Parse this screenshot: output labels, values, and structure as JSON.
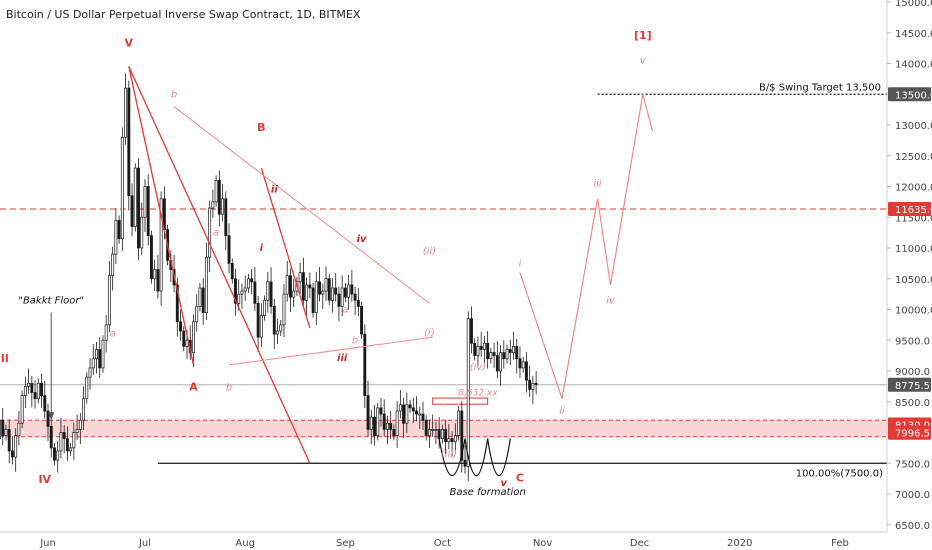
{
  "title": "Bitcoin / US Dollar Perpetual Inverse Swap Contract, 1D, BITMEX",
  "colors": {
    "candle": "#1a1a1a",
    "wave": "#e53935",
    "wave_light": "#f08a8a",
    "zone_fill": "#f7c6c6",
    "price_badge_dark": "#555555",
    "price_badge_red": "#e53935"
  },
  "chart_data": {
    "type": "candlestick",
    "ylim": [
      6600,
      15200
    ],
    "y_ticks": [
      "15000.0",
      "14500.0",
      "14000.0",
      "13500.0",
      "13000.0",
      "12500.0",
      "12000.0",
      "11500.0",
      "11000.0",
      "10500.0",
      "10000.0",
      "9500.0",
      "9000.0",
      "8500.0",
      "8000.0",
      "7500.0",
      "7000.0",
      "6500.0"
    ],
    "x_ticks": [
      {
        "label": "Jun",
        "date": "2019-06-01"
      },
      {
        "label": "Jul",
        "date": "2019-07-01"
      },
      {
        "label": "Aug",
        "date": "2019-08-01"
      },
      {
        "label": "Sep",
        "date": "2019-09-01"
      },
      {
        "label": "Oct",
        "date": "2019-10-01"
      },
      {
        "label": "Nov",
        "date": "2019-11-01"
      },
      {
        "label": "Dec",
        "date": "2019-12-01"
      },
      {
        "label": "2020",
        "date": "2020-01-01"
      },
      {
        "label": "Feb",
        "date": "2020-02-01"
      }
    ],
    "start_date": "2019-05-14",
    "closes": [
      7800,
      8100,
      7900,
      8200,
      7950,
      8050,
      7700,
      7600,
      7950,
      8150,
      8600,
      8750,
      8800,
      8650,
      8550,
      8800,
      8600,
      8350,
      8100,
      7750,
      7550,
      7700,
      8000,
      7900,
      7700,
      7750,
      8000,
      8050,
      8200,
      8550,
      8900,
      9050,
      9200,
      9350,
      9050,
      9500,
      9750,
      10550,
      10900,
      11450,
      11150,
      12800,
      13600,
      11850,
      11350,
      12300,
      11000,
      11500,
      12000,
      11200,
      10500,
      10650,
      10300,
      11800,
      11300,
      10800,
      10650,
      10400,
      9800,
      9650,
      9400,
      9500,
      9300,
      9800,
      10050,
      10350,
      9950,
      10850,
      11650,
      11750,
      12100,
      11550,
      11800,
      11200,
      10750,
      10500,
      10100,
      10250,
      10300,
      10350,
      10500,
      10450,
      10100,
      9550,
      9900,
      10150,
      10450,
      10050,
      9600,
      9650,
      9750,
      10250,
      10550,
      10200,
      10300,
      10450,
      10600,
      10150,
      10400,
      10350,
      9950,
      10450,
      10250,
      10300,
      10500,
      10150,
      10350,
      10250,
      10050,
      10350,
      10200,
      10400,
      10250,
      10150,
      10050,
      9600,
      8600,
      8050,
      8250,
      7950,
      8400,
      8300,
      8050,
      8150,
      8050,
      7950,
      8350,
      8450,
      8150,
      8450,
      8400,
      8350,
      8300,
      8300,
      8200,
      7950,
      8050,
      8050,
      8050,
      7900,
      8050,
      7850,
      7900,
      7850,
      7950,
      8350,
      7550,
      7450,
      9850,
      9450,
      9250,
      9400,
      9350,
      9450,
      9200,
      9300,
      9250,
      9000,
      9300,
      9200,
      9350,
      9300,
      9400,
      9200,
      9050,
      9150,
      8850,
      8700,
      8800,
      8780
    ],
    "price_labels": [
      {
        "value": 13500,
        "text": "13500.0",
        "style": "dark"
      },
      {
        "value": 11635,
        "text": "11635.0",
        "style": "red"
      },
      {
        "value": 8775.5,
        "text": "8775.5",
        "style": "dark"
      },
      {
        "value": 8130,
        "text": "8130.0",
        "style": "red"
      },
      {
        "value": 7996.5,
        "text": "7996.5",
        "style": "red"
      }
    ],
    "resistance_level": 11635,
    "support_zone": [
      7930,
      8200
    ],
    "swing_target": {
      "value": 13500,
      "label": "B/$ Swing Target 13,500"
    },
    "fib_level": {
      "value": 7500,
      "label": "100.00%(7500.0)"
    },
    "annotations": [
      {
        "text": "V",
        "date": "2019-06-26",
        "price": 14280,
        "style": "wave-red"
      },
      {
        "text": "b",
        "date": "2019-07-10",
        "price": 13450,
        "style": "italic-red"
      },
      {
        "text": "B",
        "date": "2019-08-06",
        "price": 12900,
        "style": "wave-red"
      },
      {
        "text": "ii",
        "date": "2019-08-10",
        "price": 11900,
        "style": "italic-darkred"
      },
      {
        "text": "a",
        "date": "2019-07-23",
        "price": 11200,
        "style": "italic-red"
      },
      {
        "text": "i",
        "date": "2019-08-06",
        "price": 10950,
        "style": "italic-darkred"
      },
      {
        "text": "iv",
        "date": "2019-09-06",
        "price": 11100,
        "style": "italic-darkred"
      },
      {
        "text": "(ii)",
        "date": "2019-09-27",
        "price": 10900,
        "style": "italic-red"
      },
      {
        "text": "a",
        "date": "2019-09-01",
        "price": 9950,
        "style": "italic-red"
      },
      {
        "text": "b",
        "date": "2019-09-04",
        "price": 9450,
        "style": "italic-red"
      },
      {
        "text": "iii",
        "date": "2019-08-31",
        "price": 9160,
        "style": "italic-darkred"
      },
      {
        "text": "(i)",
        "date": "2019-09-27",
        "price": 9580,
        "style": "italic-red"
      },
      {
        "text": "a",
        "date": "2019-06-21",
        "price": 9560,
        "style": "italic-red"
      },
      {
        "text": "A",
        "date": "2019-07-16",
        "price": 8680,
        "style": "wave-red"
      },
      {
        "text": "b",
        "date": "2019-07-27",
        "price": 8680,
        "style": "italic-red"
      },
      {
        "text": "III",
        "date": "2019-05-18",
        "price": 9150,
        "style": "wave-red"
      },
      {
        "text": "IV",
        "date": "2019-05-31",
        "price": 7180,
        "style": "wave-red"
      },
      {
        "text": "\"Bakkt Floor\"",
        "date": "2019-06-02",
        "price": 10100,
        "style": "italic-black"
      },
      {
        "text": "(iv)",
        "date": "2019-10-12",
        "price": 9020,
        "style": "italic-red"
      },
      {
        "text": "8,532.xx",
        "date": "2019-10-12",
        "price": 8600,
        "style": "italic-red-small"
      },
      {
        "text": "(iii)",
        "date": "2019-10-03",
        "price": 7600,
        "style": "italic-red"
      },
      {
        "text": "Base formation",
        "date": "2019-10-15",
        "price": 6980,
        "style": "italic-black"
      },
      {
        "text": "v",
        "date": "2019-10-20",
        "price": 7130,
        "style": "italic-darkred"
      },
      {
        "text": "C",
        "date": "2019-10-25",
        "price": 7200,
        "style": "wave-red"
      },
      {
        "text": "i",
        "date": "2019-10-25",
        "price": 10700,
        "style": "italic-red"
      },
      {
        "text": "ii",
        "date": "2019-11-07",
        "price": 8300,
        "style": "italic-red"
      },
      {
        "text": "iii",
        "date": "2019-11-18",
        "price": 12000,
        "style": "italic-red"
      },
      {
        "text": "iv",
        "date": "2019-11-22",
        "price": 10100,
        "style": "italic-red"
      },
      {
        "text": "v",
        "date": "2019-12-02",
        "price": 14000,
        "style": "italic-red"
      },
      {
        "text": "[1]",
        "date": "2019-12-02",
        "price": 14400,
        "style": "wave-red"
      }
    ],
    "wave_lines": [
      {
        "points": [
          [
            "2019-06-26",
            13950
          ],
          [
            "2019-07-16",
            9100
          ]
        ],
        "style": "solid"
      },
      {
        "points": [
          [
            "2019-06-26",
            13950
          ],
          [
            "2019-08-21",
            7500
          ]
        ],
        "style": "solid"
      },
      {
        "points": [
          [
            "2019-08-06",
            12300
          ],
          [
            "2019-08-21",
            9700
          ]
        ],
        "style": "solid"
      },
      {
        "points": [
          [
            "2019-07-10",
            13300
          ],
          [
            "2019-09-27",
            10100
          ]
        ],
        "style": "light"
      },
      {
        "points": [
          [
            "2019-07-27",
            9100
          ],
          [
            "2019-09-28",
            9550
          ]
        ],
        "style": "light"
      },
      {
        "points": [
          [
            "2019-10-25",
            10600
          ],
          [
            "2019-11-07",
            8550
          ],
          [
            "2019-11-18",
            11800
          ],
          [
            "2019-11-22",
            10400
          ],
          [
            "2019-12-02",
            13500
          ],
          [
            "2019-12-05",
            12900
          ]
        ],
        "style": "projection"
      }
    ],
    "base_arcs": [
      {
        "from": "2019-09-30",
        "to": "2019-10-08",
        "level": 7900,
        "low": 7300
      },
      {
        "from": "2019-10-08",
        "to": "2019-10-15",
        "level": 7900,
        "low": 7300
      },
      {
        "from": "2019-10-15",
        "to": "2019-10-22",
        "level": 7900,
        "low": 7300
      }
    ],
    "small_box": {
      "from": "2019-09-28",
      "to": "2019-10-15",
      "low": 8460,
      "high": 8560
    }
  }
}
